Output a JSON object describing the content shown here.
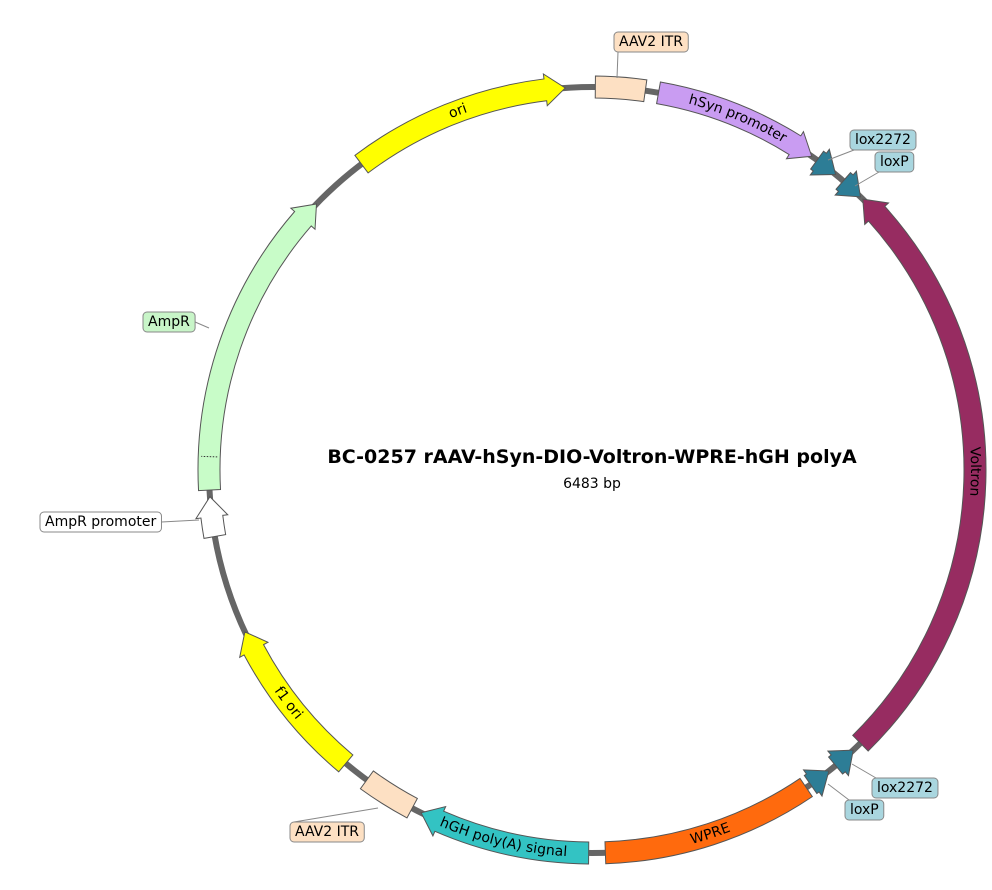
{
  "title": "BC-0257 rAAV-hSyn-DIO-Voltron-WPRE-hGH polyA",
  "length": "6483 bp",
  "features": [
    {
      "label": "AAV2 ITR"
    },
    {
      "label": "hSyn promoter"
    },
    {
      "label": "lox2272"
    },
    {
      "label": "loxP"
    },
    {
      "label": "Voltron"
    },
    {
      "label": "lox2272"
    },
    {
      "label": "loxP"
    },
    {
      "label": "WPRE"
    },
    {
      "label": "hGH poly(A) signal"
    },
    {
      "label": "AAV2 ITR"
    },
    {
      "label": "f1 ori"
    },
    {
      "label": "AmpR promoter"
    },
    {
      "label": "AmpR"
    },
    {
      "label": "ori"
    }
  ]
}
